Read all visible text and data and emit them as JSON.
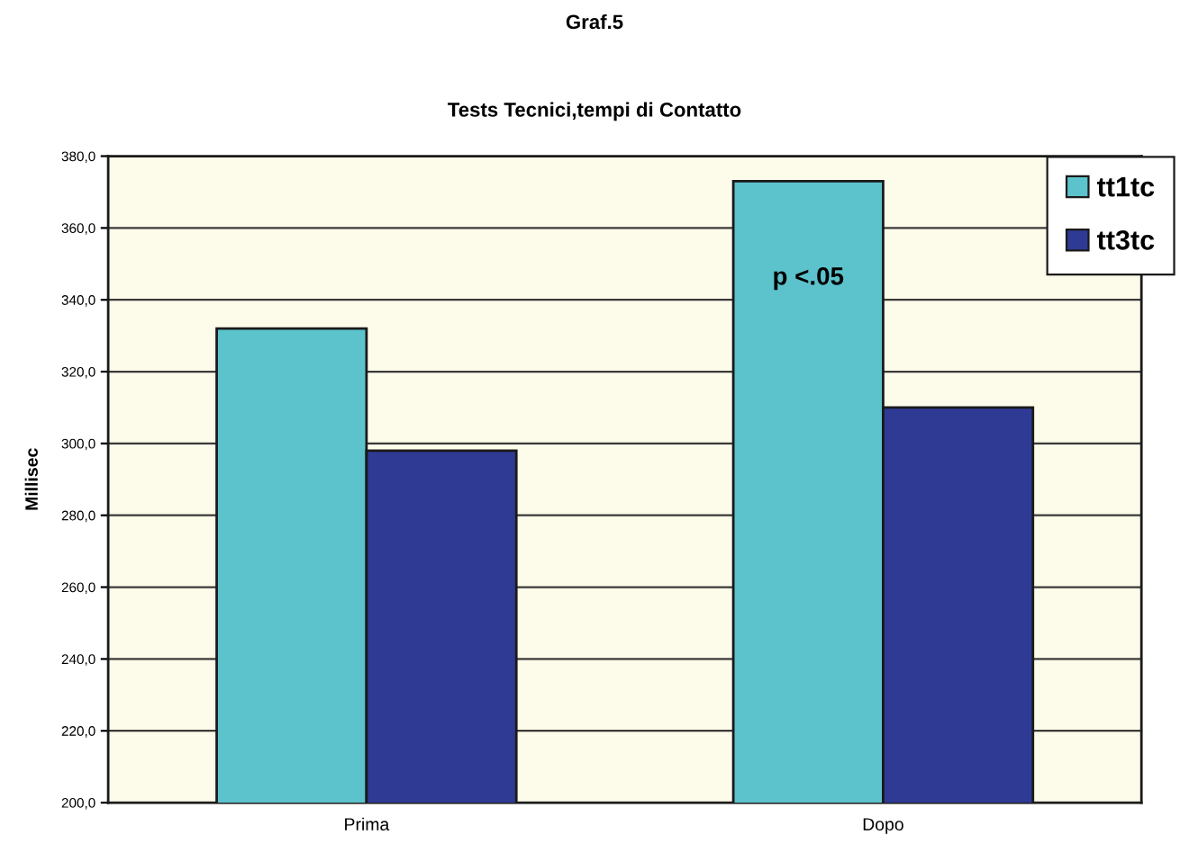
{
  "chart_data": {
    "type": "bar",
    "title": "Graf.5",
    "subtitle": "Tests Tecnici,tempi di Contatto",
    "ylabel": "Millisec",
    "categories": [
      "Prima",
      "Dopo"
    ],
    "series": [
      {
        "name": "tt1tc",
        "color": "#5cc3cd",
        "values": [
          332,
          373
        ]
      },
      {
        "name": "tt3tc",
        "color": "#2f3a95",
        "values": [
          298,
          310
        ]
      }
    ],
    "ylim": [
      200,
      380
    ],
    "yticks": [
      {
        "value": 200,
        "label": "200,0"
      },
      {
        "value": 220,
        "label": "220,0"
      },
      {
        "value": 240,
        "label": "240,0"
      },
      {
        "value": 260,
        "label": "260,0"
      },
      {
        "value": 280,
        "label": "280,0"
      },
      {
        "value": 300,
        "label": "300,0"
      },
      {
        "value": 320,
        "label": "320,0"
      },
      {
        "value": 340,
        "label": "340,0"
      },
      {
        "value": 360,
        "label": "360,0"
      },
      {
        "value": 380,
        "label": "380,0"
      }
    ],
    "annotations": [
      {
        "text": "p <.05",
        "x": "Dopo",
        "y": 346
      }
    ],
    "grid": "y",
    "legend": "top right"
  }
}
